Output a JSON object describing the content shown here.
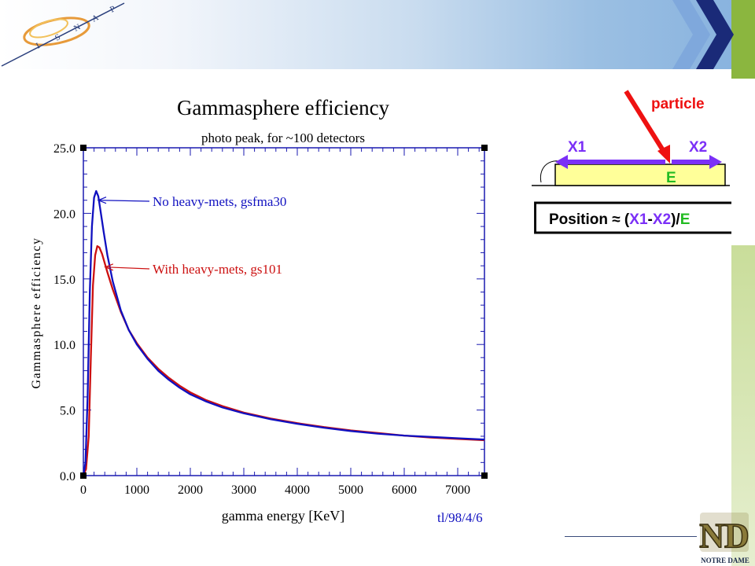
{
  "logo": {
    "letters": [
      "I",
      "S",
      "N",
      "A",
      "P"
    ]
  },
  "chart_data": {
    "type": "line",
    "title": "Gammasphere efficiency",
    "subtitle": "photo peak, for ~100 detectors",
    "xlabel": "gamma energy [KeV]",
    "ylabel": "Gammasphere efficiency",
    "xlim": [
      0,
      7500
    ],
    "ylim": [
      0,
      25
    ],
    "x_ticks": [
      "0",
      "1000",
      "2000",
      "3000",
      "4000",
      "5000",
      "6000",
      "7000"
    ],
    "y_ticks": [
      "0.0",
      "5.0",
      "10.0",
      "15.0",
      "20.0",
      "25.0"
    ],
    "footnote": "tl/98/4/6",
    "series": [
      {
        "name": "No heavy-mets, gsfma30",
        "color": "#1010c0",
        "x": [
          0,
          40,
          80,
          120,
          160,
          200,
          240,
          280,
          320,
          380,
          450,
          550,
          700,
          850,
          1000,
          1200,
          1400,
          1600,
          1800,
          2000,
          2300,
          2600,
          3000,
          3500,
          4000,
          4500,
          5000,
          5500,
          6000,
          6500,
          7000,
          7500
        ],
        "y": [
          0.0,
          1.0,
          6.0,
          14.0,
          19.0,
          21.2,
          21.7,
          21.3,
          20.2,
          18.6,
          16.8,
          14.8,
          12.6,
          11.1,
          10.0,
          8.9,
          8.0,
          7.3,
          6.7,
          6.2,
          5.65,
          5.2,
          4.75,
          4.3,
          3.95,
          3.65,
          3.4,
          3.2,
          3.05,
          2.95,
          2.85,
          2.75
        ]
      },
      {
        "name": "With heavy-mets, gs101",
        "color": "#cc1010",
        "x": [
          0,
          50,
          100,
          140,
          180,
          220,
          260,
          300,
          350,
          400,
          450,
          550,
          700,
          850,
          1000,
          1200,
          1400,
          1600,
          1800,
          2000,
          2300,
          2600,
          3000,
          3500,
          4000,
          4500,
          5000,
          5500,
          6000,
          6500,
          7000,
          7500
        ],
        "y": [
          0.0,
          0.5,
          3.0,
          9.0,
          14.5,
          16.8,
          17.5,
          17.4,
          16.9,
          16.2,
          15.5,
          14.2,
          12.5,
          11.1,
          10.1,
          9.0,
          8.15,
          7.45,
          6.85,
          6.35,
          5.75,
          5.3,
          4.8,
          4.35,
          4.0,
          3.7,
          3.45,
          3.25,
          3.05,
          2.9,
          2.8,
          2.7
        ]
      }
    ]
  },
  "detector_diagram": {
    "particle_label": "particle",
    "x1_label": "X1",
    "x2_label": "X2",
    "e_label": "E",
    "formula": {
      "prefix": "Position ≈ (",
      "x1": "X1",
      "dash": "-",
      "x2": "X2",
      "mid": ")/",
      "e": "E"
    }
  },
  "footer_logo": {
    "monogram": "ND",
    "caption": "NOTRE DAME"
  }
}
